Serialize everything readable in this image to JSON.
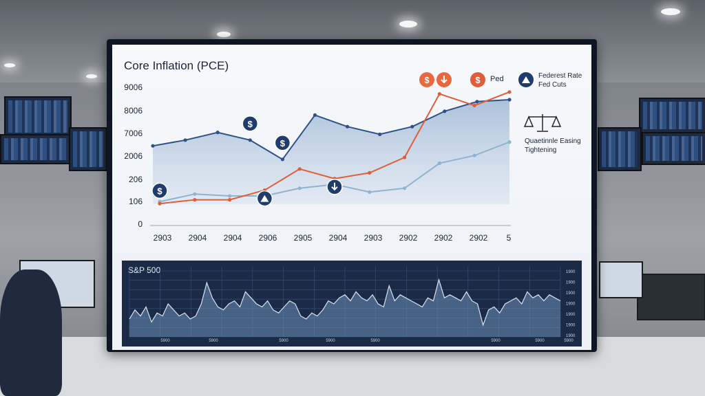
{
  "chart_data": [
    {
      "type": "line",
      "title": "Core Inflation (PCE)",
      "y_tick_labels": [
        "0",
        "106",
        "206",
        "2006",
        "7006",
        "8006",
        "9006"
      ],
      "x_tick_labels": [
        "2903",
        "2904",
        "2904",
        "2906",
        "2905",
        "2904",
        "2903",
        "2902",
        "2902",
        "2902",
        "5"
      ],
      "grid": false,
      "series": [
        {
          "color": "#2e5287",
          "values": [
            4.1,
            4.4,
            4.8,
            4.4,
            3.4,
            5.7,
            5.1,
            4.7,
            5.1,
            5.9,
            6.4,
            6.5
          ]
        },
        {
          "color": "#8fb3d0",
          "values": [
            1.2,
            1.6,
            1.5,
            1.5,
            1.9,
            2.1,
            1.7,
            1.9,
            3.2,
            3.6,
            4.3
          ]
        },
        {
          "color": "#e05d38",
          "values": [
            1.1,
            1.3,
            1.3,
            1.8,
            2.9,
            2.4,
            2.7,
            3.5,
            6.8,
            6.2,
            6.9
          ]
        }
      ],
      "legend": {
        "markers": [
          {
            "label": "",
            "icon": "dollar-icon",
            "color": "#e05d38"
          },
          {
            "label": "",
            "icon": "arrow-down-icon",
            "color": "#e05d38"
          },
          {
            "label": "Ped",
            "icon": "dollar-icon",
            "color": "#e05d38"
          },
          {
            "label": "Federest Rate",
            "label2": "Fed Cuts",
            "icon": "rate-cut-icon",
            "color": "#1f3d6b"
          }
        ],
        "side": {
          "line1": "Quaetinnle Easing",
          "line2": "Tightening",
          "icon": "balance-scale-icon"
        }
      },
      "annotations": [
        {
          "icon": "dollar-icon",
          "series_index": 1,
          "point_index": 0
        },
        {
          "icon": "dollar-icon",
          "series_index": 0,
          "point_index": 3
        },
        {
          "icon": "rate-cut-icon",
          "series_index": 2,
          "point_index": 3
        },
        {
          "icon": "dollar-icon",
          "series_index": 0,
          "point_index": 4
        },
        {
          "icon": "arrow-down-icon",
          "series_index": 2,
          "point_index": 5
        }
      ]
    },
    {
      "type": "area",
      "title": "S&P 500",
      "y_tick_labels": [
        "1900",
        "1900",
        "1900",
        "1900",
        "1900",
        "1900",
        "1900"
      ],
      "x_tick_labels": [
        "5900",
        "5900",
        "5900",
        "5900",
        "5900",
        "5900",
        "5900",
        "5900"
      ],
      "grid": true,
      "series": [
        {
          "color": "#c9d8ea",
          "values": [
            0.25,
            0.4,
            0.3,
            0.45,
            0.2,
            0.35,
            0.3,
            0.5,
            0.4,
            0.3,
            0.35,
            0.25,
            0.3,
            0.5,
            0.85,
            0.6,
            0.45,
            0.4,
            0.5,
            0.55,
            0.45,
            0.7,
            0.6,
            0.5,
            0.45,
            0.55,
            0.4,
            0.35,
            0.45,
            0.55,
            0.5,
            0.3,
            0.25,
            0.35,
            0.3,
            0.4,
            0.55,
            0.5,
            0.6,
            0.65,
            0.55,
            0.7,
            0.6,
            0.55,
            0.65,
            0.5,
            0.45,
            0.8,
            0.55,
            0.65,
            0.6,
            0.55,
            0.5,
            0.45,
            0.6,
            0.55,
            0.9,
            0.6,
            0.65,
            0.6,
            0.55,
            0.7,
            0.55,
            0.5,
            0.15,
            0.4,
            0.45,
            0.35,
            0.5,
            0.55,
            0.6,
            0.5,
            0.7,
            0.6,
            0.65,
            0.55,
            0.65,
            0.6,
            0.55
          ]
        }
      ]
    }
  ]
}
